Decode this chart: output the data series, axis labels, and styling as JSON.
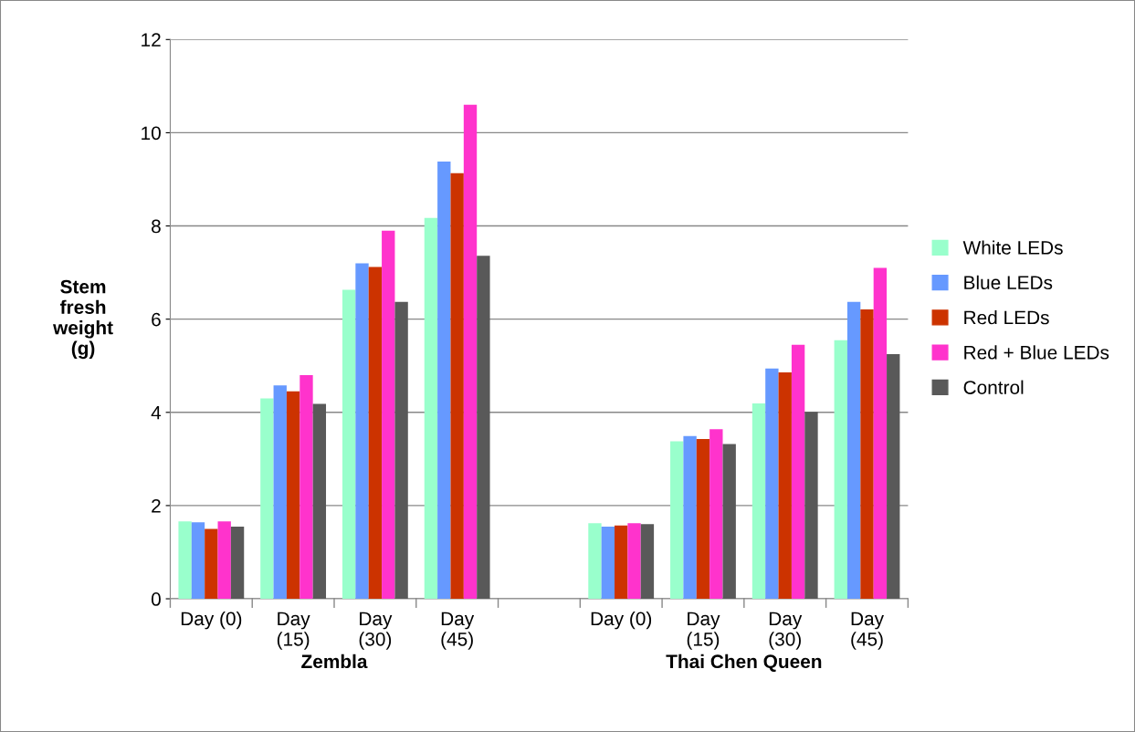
{
  "chart_data": {
    "type": "bar",
    "ylabel": "Stem\nfresh\nweight\n(g)",
    "categories": [
      "Day (0)",
      "Day\n(15)",
      "Day\n(30)",
      "Day\n(45)",
      null,
      "Day (0)",
      "Day\n(15)",
      "Day\n(30)",
      "Day\n(45)"
    ],
    "series": [
      {
        "name": "White LEDs",
        "color": "#99ffcc",
        "values": [
          1.66,
          4.3,
          6.63,
          8.17,
          null,
          1.62,
          3.38,
          4.19,
          5.55
        ]
      },
      {
        "name": "Blue LEDs",
        "color": "#6699ff",
        "values": [
          1.64,
          4.58,
          7.2,
          9.38,
          null,
          1.55,
          3.49,
          4.94,
          6.37
        ]
      },
      {
        "name": "Red LEDs",
        "color": "#cc3300",
        "values": [
          1.5,
          4.45,
          7.12,
          9.13,
          null,
          1.57,
          3.43,
          4.86,
          6.21
        ]
      },
      {
        "name": "Red + Blue LEDs",
        "color": "#ff33cc",
        "values": [
          1.66,
          4.8,
          7.9,
          10.6,
          null,
          1.62,
          3.64,
          5.45,
          7.1
        ]
      },
      {
        "name": "Control",
        "color": "#595959",
        "values": [
          1.55,
          4.18,
          6.37,
          7.36,
          null,
          1.6,
          3.32,
          4.01,
          5.25
        ]
      }
    ],
    "ylim": [
      0,
      12
    ],
    "yticks": [
      0,
      2,
      4,
      6,
      8,
      10,
      12
    ],
    "grid": "y",
    "legend": "right",
    "annotations": [
      "Zembla",
      "Thai Chen Queen"
    ]
  }
}
